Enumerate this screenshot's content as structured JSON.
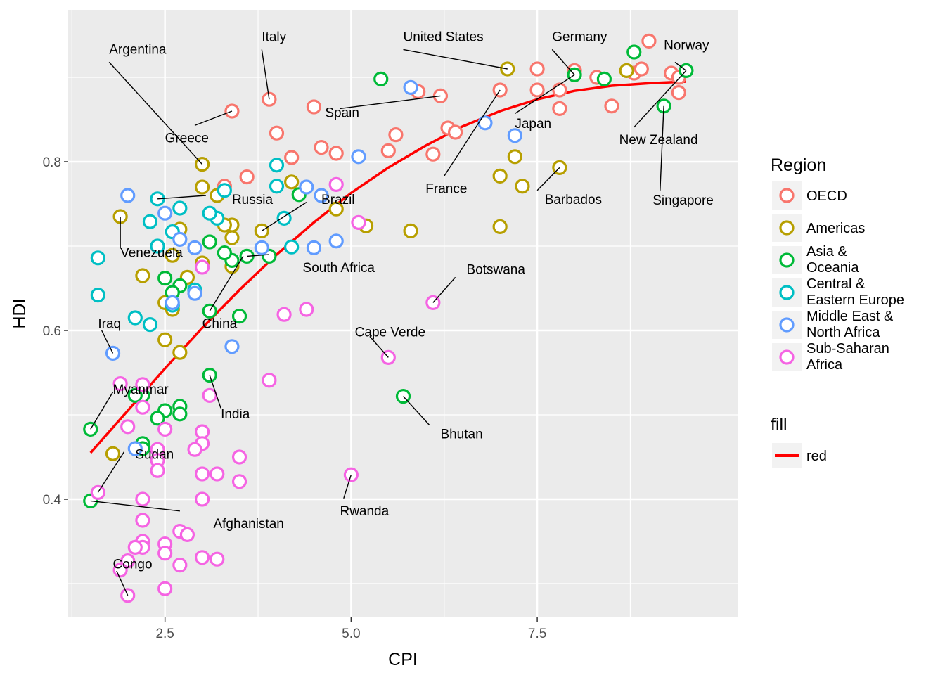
{
  "chart_data": {
    "type": "scatter",
    "xlabel": "CPI",
    "ylabel": "HDI",
    "xlim": [
      1.2,
      10.2
    ],
    "ylim": [
      0.26,
      0.98
    ],
    "x_ticks": [
      2.5,
      5.0,
      7.5
    ],
    "x_tick_labels": [
      "2.5",
      "5.0",
      "7.5"
    ],
    "y_ticks": [
      0.4,
      0.6,
      0.8
    ],
    "y_tick_labels": [
      "0.4",
      "0.6",
      "0.8"
    ],
    "x_minor": [
      1.25,
      3.75,
      6.25,
      8.75
    ],
    "y_minor": [
      0.3,
      0.5,
      0.7,
      0.9
    ],
    "grid": true,
    "legend_position": "right",
    "regions": [
      {
        "key": "OECD",
        "lines": [
          "OECD"
        ],
        "color": "#F8766D"
      },
      {
        "key": "Americas",
        "lines": [
          "Americas"
        ],
        "color": "#B79F00"
      },
      {
        "key": "Asia",
        "lines": [
          "Asia &",
          "Oceania"
        ],
        "color": "#00BA38"
      },
      {
        "key": "CEE",
        "lines": [
          "Central &",
          "Eastern Europe"
        ],
        "color": "#00BFC4"
      },
      {
        "key": "MENA",
        "lines": [
          "Middle East &",
          "North Africa"
        ],
        "color": "#619CFF"
      },
      {
        "key": "SSA",
        "lines": [
          "Sub-Saharan",
          "Africa"
        ],
        "color": "#F564E3"
      }
    ],
    "legend_region_title": "Region",
    "legend_fill_title": "fill",
    "legend_fill_label": "red",
    "trend_color": "#FF0000",
    "trend": [
      [
        1.5,
        0.455
      ],
      [
        2.0,
        0.505
      ],
      [
        2.5,
        0.555
      ],
      [
        3.0,
        0.603
      ],
      [
        3.5,
        0.648
      ],
      [
        4.0,
        0.69
      ],
      [
        4.5,
        0.728
      ],
      [
        5.0,
        0.763
      ],
      [
        5.5,
        0.793
      ],
      [
        6.0,
        0.819
      ],
      [
        6.5,
        0.842
      ],
      [
        7.0,
        0.86
      ],
      [
        7.5,
        0.874
      ],
      [
        8.0,
        0.884
      ],
      [
        8.5,
        0.89
      ],
      [
        9.0,
        0.893
      ],
      [
        9.5,
        0.895
      ]
    ],
    "points": {
      "OECD": [
        [
          9.0,
          0.943
        ],
        [
          8.0,
          0.908
        ],
        [
          7.5,
          0.91
        ],
        [
          8.3,
          0.9
        ],
        [
          8.8,
          0.905
        ],
        [
          9.3,
          0.905
        ],
        [
          9.4,
          0.882
        ],
        [
          8.5,
          0.866
        ],
        [
          7.8,
          0.885
        ],
        [
          7.8,
          0.863
        ],
        [
          7.5,
          0.885
        ],
        [
          7.0,
          0.885
        ],
        [
          6.2,
          0.878
        ],
        [
          5.9,
          0.883
        ],
        [
          5.6,
          0.832
        ],
        [
          5.5,
          0.813
        ],
        [
          6.3,
          0.84
        ],
        [
          6.4,
          0.835
        ],
        [
          6.1,
          0.809
        ],
        [
          4.5,
          0.865
        ],
        [
          3.9,
          0.874
        ],
        [
          4.0,
          0.834
        ],
        [
          4.6,
          0.817
        ],
        [
          4.8,
          0.81
        ],
        [
          4.2,
          0.805
        ],
        [
          3.6,
          0.782
        ],
        [
          3.4,
          0.86
        ],
        [
          3.3,
          0.771
        ],
        [
          9.4,
          0.9
        ],
        [
          8.9,
          0.91
        ]
      ],
      "Americas": [
        [
          7.1,
          0.91
        ],
        [
          8.7,
          0.908
        ],
        [
          7.2,
          0.806
        ],
        [
          7.0,
          0.783
        ],
        [
          7.8,
          0.793
        ],
        [
          7.3,
          0.771
        ],
        [
          7.0,
          0.723
        ],
        [
          5.8,
          0.718
        ],
        [
          5.2,
          0.724
        ],
        [
          4.8,
          0.744
        ],
        [
          4.2,
          0.776
        ],
        [
          3.8,
          0.718
        ],
        [
          3.4,
          0.725
        ],
        [
          3.4,
          0.71
        ],
        [
          3.0,
          0.77
        ],
        [
          3.0,
          0.797
        ],
        [
          3.2,
          0.76
        ],
        [
          3.3,
          0.725
        ],
        [
          2.7,
          0.72
        ],
        [
          2.6,
          0.689
        ],
        [
          2.2,
          0.665
        ],
        [
          1.9,
          0.735
        ],
        [
          3.0,
          0.68
        ],
        [
          3.4,
          0.676
        ],
        [
          2.8,
          0.663
        ],
        [
          2.5,
          0.633
        ],
        [
          2.6,
          0.625
        ],
        [
          2.5,
          0.589
        ],
        [
          2.7,
          0.574
        ],
        [
          1.8,
          0.454
        ]
      ],
      "Asia": [
        [
          9.5,
          0.908
        ],
        [
          8.8,
          0.93
        ],
        [
          8.4,
          0.898
        ],
        [
          8.0,
          0.903
        ],
        [
          9.2,
          0.866
        ],
        [
          5.4,
          0.898
        ],
        [
          4.3,
          0.761
        ],
        [
          5.7,
          0.522
        ],
        [
          3.6,
          0.688
        ],
        [
          3.9,
          0.688
        ],
        [
          3.4,
          0.683
        ],
        [
          3.3,
          0.692
        ],
        [
          3.1,
          0.705
        ],
        [
          3.5,
          0.617
        ],
        [
          3.1,
          0.623
        ],
        [
          3.1,
          0.547
        ],
        [
          2.7,
          0.653
        ],
        [
          2.5,
          0.662
        ],
        [
          2.6,
          0.645
        ],
        [
          2.7,
          0.51
        ],
        [
          2.7,
          0.501
        ],
        [
          2.5,
          0.505
        ],
        [
          2.4,
          0.496
        ],
        [
          2.2,
          0.523
        ],
        [
          2.1,
          0.523
        ],
        [
          2.2,
          0.466
        ],
        [
          2.2,
          0.46
        ],
        [
          1.5,
          0.483
        ],
        [
          1.5,
          0.398
        ]
      ],
      "CEE": [
        [
          4.0,
          0.796
        ],
        [
          4.0,
          0.771
        ],
        [
          4.1,
          0.733
        ],
        [
          4.2,
          0.699
        ],
        [
          3.3,
          0.766
        ],
        [
          3.2,
          0.733
        ],
        [
          3.1,
          0.739
        ],
        [
          2.7,
          0.745
        ],
        [
          2.4,
          0.756
        ],
        [
          2.3,
          0.729
        ],
        [
          2.6,
          0.717
        ],
        [
          2.4,
          0.7
        ],
        [
          2.9,
          0.648
        ],
        [
          2.6,
          0.63
        ],
        [
          2.1,
          0.615
        ],
        [
          2.3,
          0.607
        ],
        [
          1.6,
          0.686
        ],
        [
          1.6,
          0.642
        ]
      ],
      "MENA": [
        [
          5.8,
          0.888
        ],
        [
          6.8,
          0.846
        ],
        [
          7.2,
          0.831
        ],
        [
          5.1,
          0.806
        ],
        [
          4.4,
          0.77
        ],
        [
          4.6,
          0.76
        ],
        [
          4.8,
          0.706
        ],
        [
          4.5,
          0.698
        ],
        [
          3.8,
          0.698
        ],
        [
          3.4,
          0.581
        ],
        [
          2.9,
          0.698
        ],
        [
          2.7,
          0.708
        ],
        [
          2.5,
          0.739
        ],
        [
          2.6,
          0.633
        ],
        [
          2.9,
          0.644
        ],
        [
          2.0,
          0.76
        ],
        [
          1.8,
          0.573
        ],
        [
          2.1,
          0.46
        ]
      ],
      "SSA": [
        [
          6.1,
          0.633
        ],
        [
          5.5,
          0.568
        ],
        [
          5.1,
          0.728
        ],
        [
          4.8,
          0.773
        ],
        [
          4.4,
          0.625
        ],
        [
          4.1,
          0.619
        ],
        [
          3.9,
          0.541
        ],
        [
          5.0,
          0.429
        ],
        [
          3.5,
          0.45
        ],
        [
          3.5,
          0.421
        ],
        [
          3.2,
          0.43
        ],
        [
          3.0,
          0.43
        ],
        [
          3.0,
          0.48
        ],
        [
          3.0,
          0.466
        ],
        [
          2.9,
          0.459
        ],
        [
          3.0,
          0.4
        ],
        [
          3.1,
          0.523
        ],
        [
          3.0,
          0.675
        ],
        [
          2.5,
          0.483
        ],
        [
          2.4,
          0.459
        ],
        [
          2.4,
          0.446
        ],
        [
          2.4,
          0.434
        ],
        [
          2.2,
          0.536
        ],
        [
          2.2,
          0.509
        ],
        [
          2.0,
          0.486
        ],
        [
          1.9,
          0.537
        ],
        [
          2.2,
          0.4
        ],
        [
          2.2,
          0.375
        ],
        [
          2.2,
          0.35
        ],
        [
          2.2,
          0.343
        ],
        [
          2.1,
          0.343
        ],
        [
          2.0,
          0.327
        ],
        [
          1.9,
          0.316
        ],
        [
          2.0,
          0.286
        ],
        [
          2.5,
          0.294
        ],
        [
          2.5,
          0.347
        ],
        [
          2.5,
          0.336
        ],
        [
          2.7,
          0.322
        ],
        [
          2.7,
          0.362
        ],
        [
          2.8,
          0.358
        ],
        [
          3.0,
          0.331
        ],
        [
          3.2,
          0.329
        ],
        [
          1.6,
          0.408
        ]
      ]
    },
    "annotations": [
      {
        "label": "Argentina",
        "x": 3.0,
        "y": 0.797,
        "lx": 1.75,
        "ly": 0.918,
        "ax": 1.75,
        "ay": 0.928
      },
      {
        "label": "Italy",
        "x": 3.9,
        "y": 0.874,
        "lx": 3.8,
        "ly": 0.933,
        "ax": 3.8,
        "ay": 0.943
      },
      {
        "label": "United States",
        "x": 7.1,
        "y": 0.91,
        "lx": 5.7,
        "ly": 0.933,
        "ax": 5.7,
        "ay": 0.943
      },
      {
        "label": "Germany",
        "x": 8.0,
        "y": 0.903,
        "lx": 7.7,
        "ly": 0.933,
        "ax": 7.7,
        "ay": 0.943
      },
      {
        "label": "Norway",
        "x": 9.5,
        "y": 0.908,
        "lx": 9.35,
        "ly": 0.918,
        "ax": 9.2,
        "ay": 0.933
      },
      {
        "label": "Spain",
        "x": 6.2,
        "y": 0.878,
        "lx": 4.85,
        "ly": 0.863,
        "ax": 4.65,
        "ay": 0.853
      },
      {
        "label": "Greece",
        "x": 3.4,
        "y": 0.86,
        "lx": 2.9,
        "ly": 0.843,
        "ax": 2.5,
        "ay": 0.823
      },
      {
        "label": "Japan",
        "x": 8.0,
        "y": 0.903,
        "lx": 7.2,
        "ly": 0.857,
        "ax": 7.2,
        "ay": 0.84
      },
      {
        "label": "New Zealand",
        "x": 9.5,
        "y": 0.908,
        "lx": 8.8,
        "ly": 0.841,
        "ax": 8.6,
        "ay": 0.821
      },
      {
        "label": "Russia",
        "x": 2.4,
        "y": 0.756,
        "lx": 3.05,
        "ly": 0.76,
        "ax": 3.4,
        "ay": 0.75
      },
      {
        "label": "Brazil",
        "x": 3.8,
        "y": 0.718,
        "lx": 4.4,
        "ly": 0.752,
        "ax": 4.6,
        "ay": 0.75
      },
      {
        "label": "France",
        "x": 7.0,
        "y": 0.885,
        "lx": 6.25,
        "ly": 0.783,
        "ax": 6.0,
        "ay": 0.763
      },
      {
        "label": "Barbados",
        "x": 7.8,
        "y": 0.793,
        "lx": 7.5,
        "ly": 0.766,
        "ax": 7.6,
        "ay": 0.75
      },
      {
        "label": "Singapore",
        "x": 9.2,
        "y": 0.866,
        "lx": 9.15,
        "ly": 0.766,
        "ax": 9.05,
        "ay": 0.749
      },
      {
        "label": "Venezuela",
        "x": 1.9,
        "y": 0.735,
        "lx": 1.9,
        "ly": 0.697,
        "ax": 1.9,
        "ay": 0.687
      },
      {
        "label": "South Africa",
        "x": 3.6,
        "y": 0.688,
        "lx": 3.9,
        "ly": 0.69,
        "ax": 4.35,
        "ay": 0.669
      },
      {
        "label": "Botswana",
        "x": 6.1,
        "y": 0.633,
        "lx": 6.4,
        "ly": 0.663,
        "ax": 6.55,
        "ay": 0.667
      },
      {
        "label": "Iraq",
        "x": 1.8,
        "y": 0.573,
        "lx": 1.65,
        "ly": 0.6,
        "ax": 1.6,
        "ay": 0.603
      },
      {
        "label": "China",
        "x": 3.1,
        "y": 0.623,
        "lx": 3.55,
        "ly": 0.688,
        "ax": 3.0,
        "ay": 0.603
      },
      {
        "label": "Cape Verde",
        "x": 5.5,
        "y": 0.568,
        "lx": 5.25,
        "ly": 0.593,
        "ax": 5.05,
        "ay": 0.593
      },
      {
        "label": "Myanmar",
        "x": 1.5,
        "y": 0.483,
        "lx": 1.8,
        "ly": 0.527,
        "ax": 1.8,
        "ay": 0.525
      },
      {
        "label": "India",
        "x": 3.1,
        "y": 0.547,
        "lx": 3.25,
        "ly": 0.508,
        "ax": 3.25,
        "ay": 0.496
      },
      {
        "label": "Bhutan",
        "x": 5.7,
        "y": 0.522,
        "lx": 6.05,
        "ly": 0.488,
        "ax": 6.2,
        "ay": 0.472
      },
      {
        "label": "Sudan",
        "x": 1.6,
        "y": 0.408,
        "lx": 1.95,
        "ly": 0.456,
        "ax": 2.1,
        "ay": 0.448
      },
      {
        "label": "Afghanistan",
        "x": 1.5,
        "y": 0.398,
        "lx": 2.7,
        "ly": 0.386,
        "ax": 3.15,
        "ay": 0.366
      },
      {
        "label": "Rwanda",
        "x": 5.0,
        "y": 0.429,
        "lx": 4.9,
        "ly": 0.401,
        "ax": 4.85,
        "ay": 0.381
      },
      {
        "label": "Congo",
        "x": 2.0,
        "y": 0.286,
        "lx": 1.85,
        "ly": 0.315,
        "ax": 1.8,
        "ay": 0.318
      }
    ]
  }
}
